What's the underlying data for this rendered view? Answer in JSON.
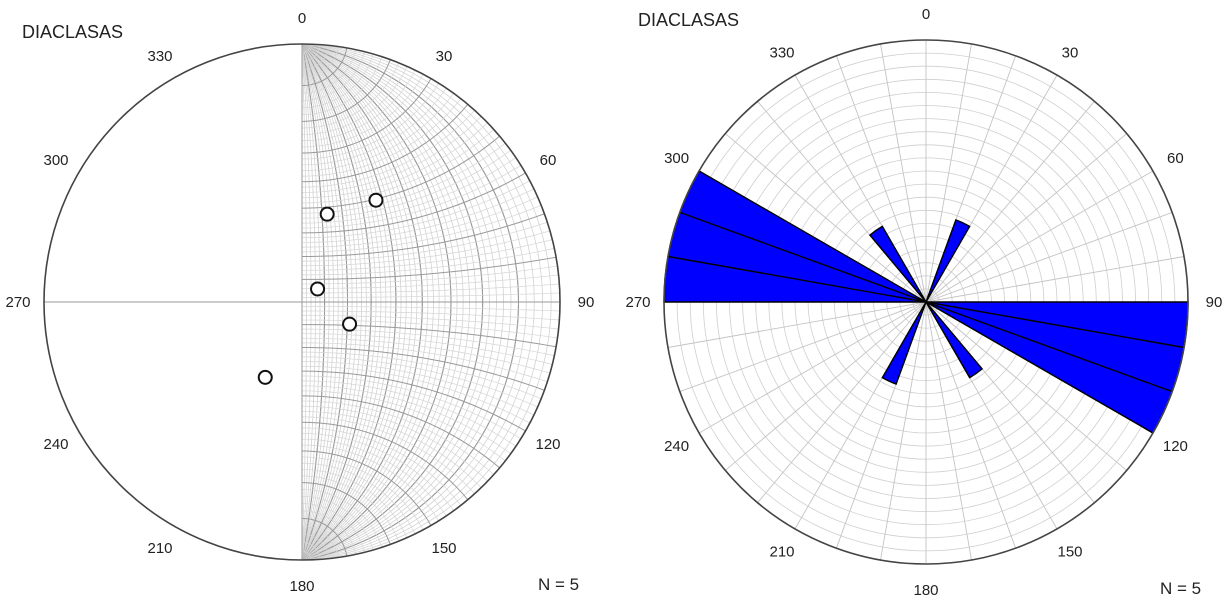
{
  "chart_data": [
    {
      "type": "stereonet",
      "projection": "equal-angle",
      "title": "DIACLASAS",
      "angle_labels": [
        "0",
        "30",
        "60",
        "90",
        "120",
        "150",
        "180",
        "210",
        "240",
        "270",
        "300",
        "330"
      ],
      "count_label": "N = 5",
      "poles": [
        {
          "trend": 16,
          "plunge": 51
        },
        {
          "trend": 36,
          "plunge": 38
        },
        {
          "trend": 50,
          "plunge": 81
        },
        {
          "trend": 115,
          "plunge": 67
        },
        {
          "trend": 206,
          "plunge": 54
        }
      ]
    },
    {
      "type": "rose",
      "title": "DIACLASAS",
      "angle_labels": [
        "0",
        "30",
        "60",
        "90",
        "120",
        "150",
        "180",
        "210",
        "240",
        "270",
        "300",
        "330"
      ],
      "count_label": "N = 5",
      "bin_width": 10,
      "petals": [
        {
          "from": 20,
          "to": 30,
          "count": 1
        },
        {
          "from": 200,
          "to": 210,
          "count": 1
        },
        {
          "from": 90,
          "to": 120,
          "count": 3
        },
        {
          "from": 270,
          "to": 300,
          "count": 3
        },
        {
          "from": 140,
          "to": 150,
          "count": 1
        },
        {
          "from": 320,
          "to": 330,
          "count": 1
        }
      ],
      "max_count": 3,
      "fill_color": "#0000ff"
    }
  ]
}
